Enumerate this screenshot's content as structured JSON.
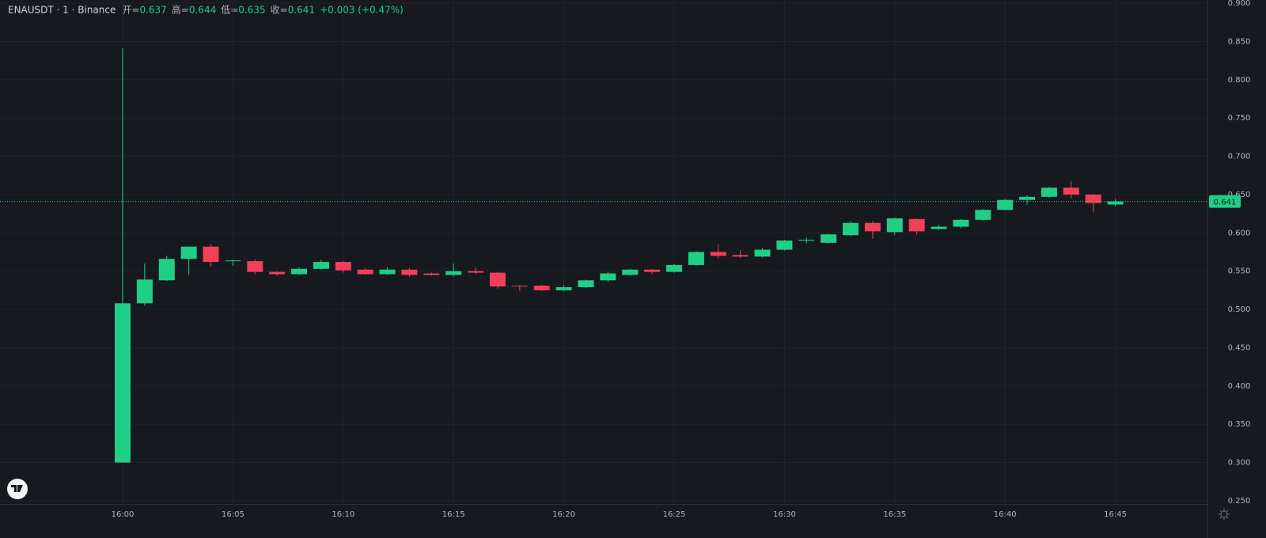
{
  "header": {
    "symbol": "ENAUSDT · 1 · Binance",
    "fields": [
      {
        "label": "开=",
        "value": "0.637"
      },
      {
        "label": "高=",
        "value": "0.644"
      },
      {
        "label": "低=",
        "value": "0.635"
      },
      {
        "label": "收=",
        "value": "0.641"
      }
    ],
    "change": "+0.003 (+0.47%)"
  },
  "chart_data": {
    "type": "candlestick",
    "categories": [
      "16:00",
      null,
      null,
      null,
      null,
      "16:05",
      null,
      null,
      null,
      null,
      "16:10",
      null,
      null,
      null,
      null,
      "16:15",
      null,
      null,
      null,
      null,
      "16:20",
      null,
      null,
      null,
      null,
      "16:25",
      null,
      null,
      null,
      null,
      "16:30",
      null,
      null,
      null,
      null,
      "16:35",
      null,
      null,
      null,
      null,
      "16:40",
      null,
      null,
      null,
      null,
      "16:45"
    ],
    "open": [
      0.3,
      0.508,
      0.538,
      0.566,
      0.582,
      0.563,
      0.563,
      0.549,
      0.546,
      0.553,
      0.562,
      0.552,
      0.546,
      0.552,
      0.547,
      0.545,
      0.55,
      0.548,
      0.531,
      0.531,
      0.525,
      0.529,
      0.538,
      0.545,
      0.552,
      0.549,
      0.558,
      0.575,
      0.571,
      0.569,
      0.578,
      0.59,
      0.587,
      0.597,
      0.613,
      0.601,
      0.618,
      0.605,
      0.608,
      0.617,
      0.63,
      0.643,
      0.647,
      0.659,
      0.65,
      0.637
    ],
    "high": [
      0.841,
      0.56,
      0.57,
      0.582,
      0.585,
      0.565,
      0.565,
      0.55,
      0.555,
      0.565,
      0.563,
      0.554,
      0.555,
      0.554,
      0.548,
      0.56,
      0.555,
      0.549,
      0.532,
      0.532,
      0.532,
      0.539,
      0.549,
      0.553,
      0.553,
      0.559,
      0.576,
      0.585,
      0.577,
      0.58,
      0.591,
      0.594,
      0.599,
      0.615,
      0.615,
      0.62,
      0.619,
      0.61,
      0.618,
      0.631,
      0.644,
      0.649,
      0.66,
      0.668,
      0.651,
      0.644
    ],
    "low": [
      0.3,
      0.505,
      0.537,
      0.545,
      0.556,
      0.557,
      0.546,
      0.544,
      0.545,
      0.552,
      0.548,
      0.545,
      0.545,
      0.543,
      0.544,
      0.543,
      0.546,
      0.527,
      0.524,
      0.524,
      0.524,
      0.528,
      0.536,
      0.544,
      0.546,
      0.548,
      0.557,
      0.567,
      0.567,
      0.568,
      0.577,
      0.586,
      0.586,
      0.596,
      0.592,
      0.597,
      0.598,
      0.604,
      0.606,
      0.616,
      0.629,
      0.637,
      0.646,
      0.645,
      0.627,
      0.635
    ],
    "close": [
      0.508,
      0.539,
      0.566,
      0.582,
      0.562,
      0.564,
      0.549,
      0.546,
      0.553,
      0.562,
      0.551,
      0.546,
      0.552,
      0.545,
      0.545,
      0.55,
      0.548,
      0.53,
      0.53,
      0.525,
      0.529,
      0.538,
      0.547,
      0.552,
      0.549,
      0.558,
      0.575,
      0.57,
      0.569,
      0.578,
      0.59,
      0.591,
      0.598,
      0.613,
      0.602,
      0.619,
      0.602,
      0.608,
      0.617,
      0.63,
      0.643,
      0.647,
      0.659,
      0.65,
      0.639,
      0.641
    ],
    "up_color": "#1fcf88",
    "down_color": "#f23f5a",
    "last_price": 0.641,
    "ylim": [
      0.25,
      0.9
    ],
    "yticks": [
      {
        "value": 0.25,
        "label": "0.250"
      },
      {
        "value": 0.3,
        "label": "0.300"
      },
      {
        "value": 0.35,
        "label": "0.350"
      },
      {
        "value": 0.4,
        "label": "0.400"
      },
      {
        "value": 0.45,
        "label": "0.450"
      },
      {
        "value": 0.5,
        "label": "0.500"
      },
      {
        "value": 0.55,
        "label": "0.550"
      },
      {
        "value": 0.6,
        "label": "0.600"
      },
      {
        "value": 0.65,
        "label": "0.650"
      },
      {
        "value": 0.7,
        "label": "0.700"
      },
      {
        "value": 0.75,
        "label": "0.750"
      },
      {
        "value": 0.8,
        "label": "0.800"
      },
      {
        "value": 0.85,
        "label": "0.850"
      },
      {
        "value": 0.9,
        "label": "0.900"
      }
    ],
    "grid": true
  }
}
